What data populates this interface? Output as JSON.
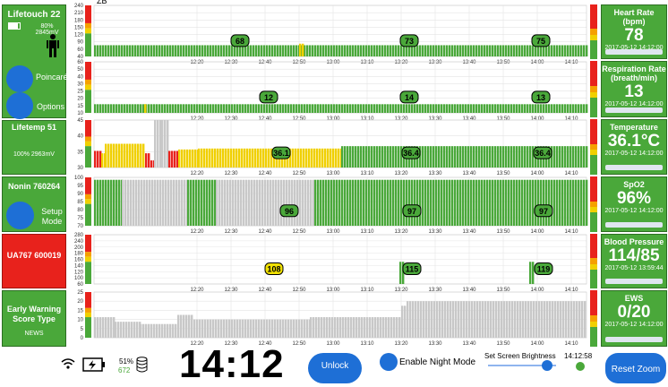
{
  "header": {
    "partial_text": "ZB"
  },
  "left": {
    "lifetouch": {
      "title": "Lifetouch 22",
      "status": "80% 2845mV",
      "poincare": "Poincaré",
      "options": "Options"
    },
    "lifetemp": {
      "title": "Lifetemp 51",
      "status": "100% 2963mV"
    },
    "nonin": {
      "title": "Nonin 760264",
      "setup": "Setup Mode"
    },
    "ua": {
      "title": "UA767 600019"
    },
    "ews": {
      "title": "Early Warning Score Type",
      "type": "NEWS"
    }
  },
  "vitals": [
    {
      "title": "Heart Rate (bpm)",
      "value": "78",
      "time": "2017-05-12 14:12:00"
    },
    {
      "title": "Respiration Rate (breath/min)",
      "value": "13",
      "time": "2017-05-12 14:12:00"
    },
    {
      "title": "Temperature",
      "value": "36.1°C",
      "time": "2017-05-12 14:12:00"
    },
    {
      "title": "SpO2",
      "value": "96%",
      "time": "2017-05-12 14:12:00"
    },
    {
      "title": "Blood Pressure",
      "value": "114/85",
      "time": "2017-05-12 13:59:44"
    },
    {
      "title": "EWS",
      "value": "0/20",
      "time": "2017-05-12 14:12:00"
    }
  ],
  "time_ticks": [
    "12:20",
    "12:30",
    "12:40",
    "12:50",
    "13:00",
    "13:10",
    "13:20",
    "13:30",
    "13:40",
    "13:50",
    "14:00",
    "14:10"
  ],
  "charts": [
    {
      "yticks": [
        "240",
        "210",
        "180",
        "150",
        "120",
        "90",
        "60",
        "40"
      ],
      "labels": [
        {
          "t": "68",
          "x": 268
        },
        {
          "t": "73",
          "x": 457
        },
        {
          "t": "75",
          "x": 604
        }
      ]
    },
    {
      "yticks": [
        "60",
        "50",
        "40",
        "30",
        "25",
        "20",
        "15",
        "10"
      ],
      "labels": [
        {
          "t": "12",
          "x": 300
        },
        {
          "t": "14",
          "x": 457
        },
        {
          "t": "13",
          "x": 604
        }
      ]
    },
    {
      "yticks": [
        "45",
        "40",
        "35",
        "30"
      ],
      "labels": [
        {
          "t": "36.1",
          "x": 314
        },
        {
          "t": "36.4",
          "x": 459
        },
        {
          "t": "36.4",
          "x": 606
        }
      ]
    },
    {
      "yticks": [
        "100",
        "95",
        "90",
        "85",
        "80",
        "75",
        "70"
      ],
      "labels": [
        {
          "t": "96",
          "x": 323
        },
        {
          "t": "97",
          "x": 460
        },
        {
          "t": "97",
          "x": 607
        }
      ]
    },
    {
      "yticks": [
        "280",
        "240",
        "200",
        "180",
        "160",
        "140",
        "120",
        "100",
        "60"
      ],
      "labels": [
        {
          "t": "108",
          "x": 306,
          "c": "#f0e000"
        },
        {
          "t": "115",
          "x": 460
        },
        {
          "t": "119",
          "x": 607
        }
      ]
    },
    {
      "yticks": [
        "25",
        "20",
        "15",
        "10",
        "5",
        "0"
      ],
      "labels": []
    }
  ],
  "footer": {
    "battery_pct": "51%",
    "count": "672",
    "clock": "14:12",
    "unlock": "Unlock",
    "night_mode": "Enable Night Mode",
    "brightness": "Set Screen Brightness",
    "time_small": "14:12:58",
    "reset_zoom": "Reset Zoom"
  },
  "colors": {
    "green": "#4aa83a",
    "red": "#e8221c",
    "yellow": "#f0d000",
    "grey": "#c8c8c8",
    "blue": "#1e6fd6"
  }
}
